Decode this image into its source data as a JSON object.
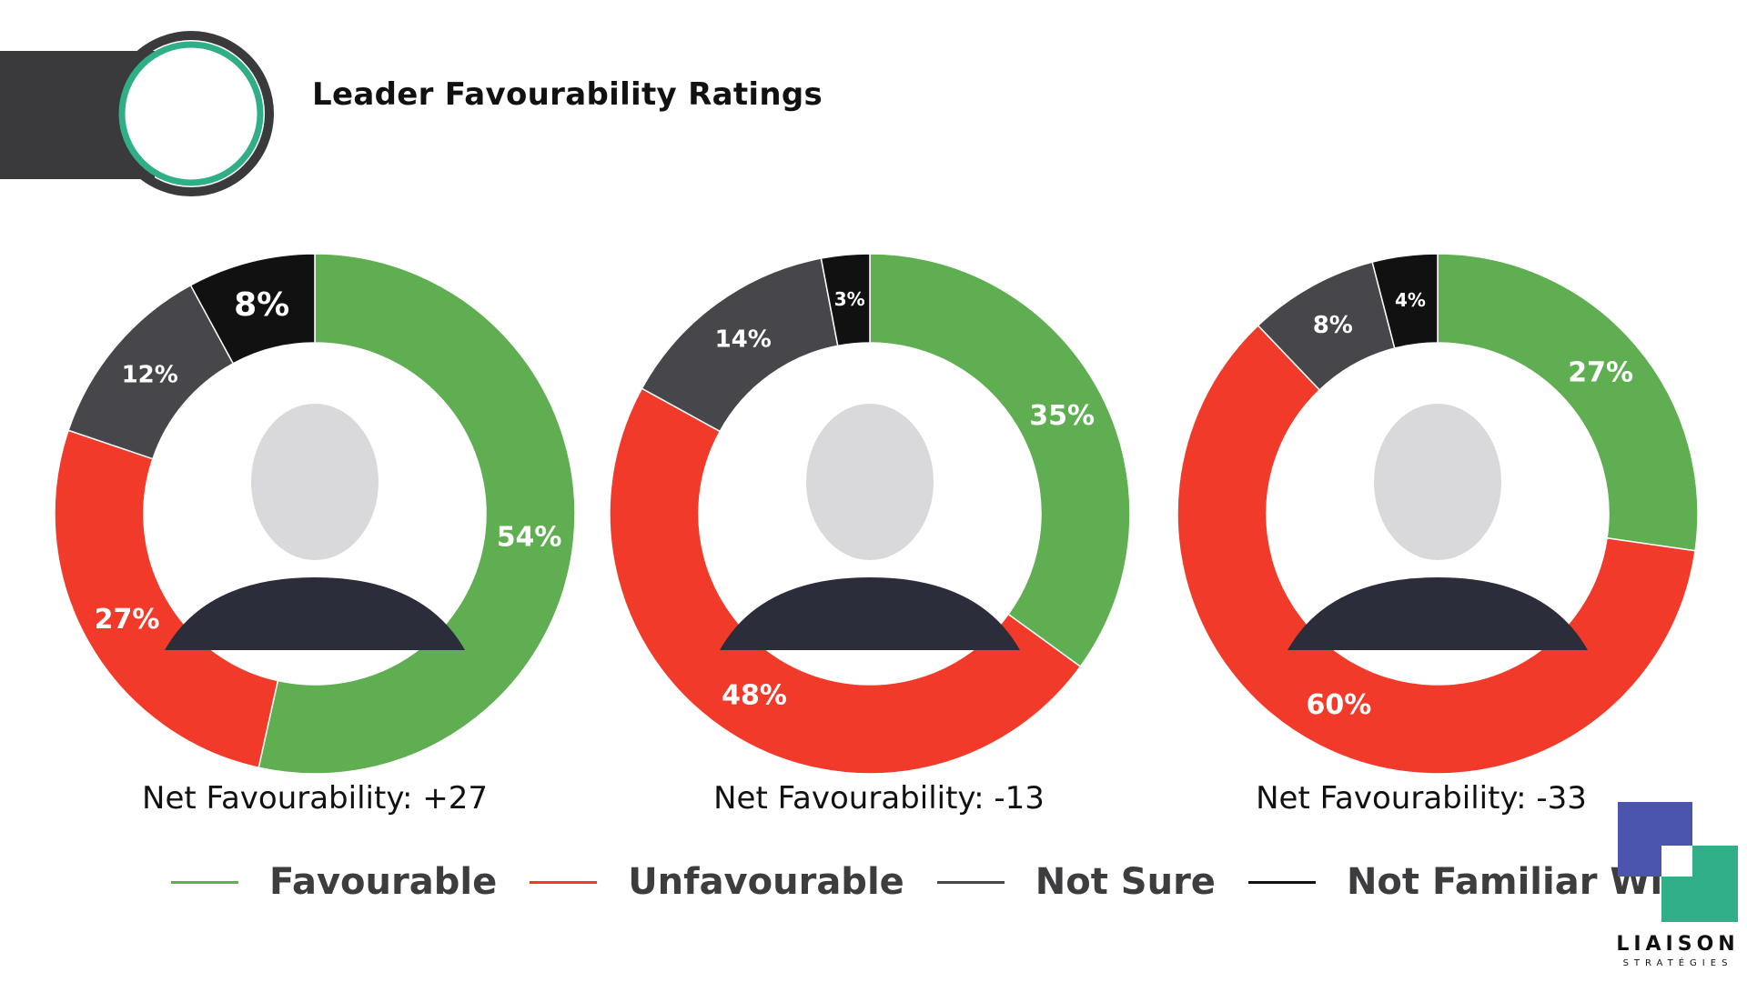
{
  "title": "Leader Favourability Ratings",
  "colors": {
    "favourable": "#5fae51",
    "unfavourable": "#f23a2a",
    "not_sure": "#47464a",
    "not_familiar": "#111111",
    "accent": "#2fae88",
    "header": "#3a393c"
  },
  "legend": [
    {
      "label": "Favourable",
      "color": "#5fae51"
    },
    {
      "label": "Unfavourable",
      "color": "#f23a2a"
    },
    {
      "label": "Not Sure",
      "color": "#47464a"
    },
    {
      "label": "Not Familiar With",
      "color": "#111111"
    }
  ],
  "chart_data": [
    {
      "type": "pie",
      "categories": [
        "Favourable",
        "Unfavourable",
        "Not Sure",
        "Not Familiar With"
      ],
      "values": [
        54,
        27,
        12,
        8
      ],
      "labels": [
        "54%",
        "27%",
        "12%",
        "8%"
      ],
      "net_label": "Net Favourability: +27"
    },
    {
      "type": "pie",
      "categories": [
        "Favourable",
        "Unfavourable",
        "Not Sure",
        "Not Familiar With"
      ],
      "values": [
        35,
        48,
        14,
        3
      ],
      "labels": [
        "35%",
        "48%",
        "14%",
        "3%"
      ],
      "net_label": "Net Favourability: -13"
    },
    {
      "type": "pie",
      "categories": [
        "Favourable",
        "Unfavourable",
        "Not Sure",
        "Not Familiar With"
      ],
      "values": [
        27,
        60,
        8,
        4
      ],
      "labels": [
        "27%",
        "60%",
        "8%",
        "4%"
      ],
      "net_label": "Net Favourability: -33"
    }
  ],
  "logo": {
    "name": "LIAISON",
    "sub": "STRATÉGIES"
  }
}
